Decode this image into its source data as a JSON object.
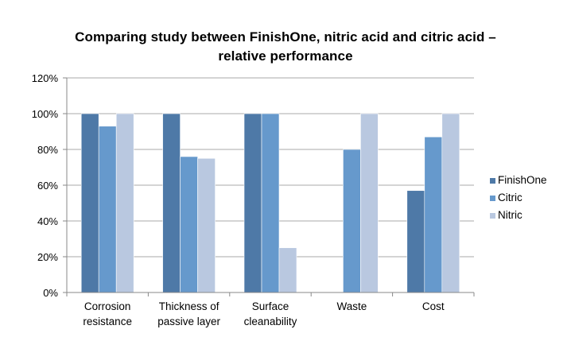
{
  "chart_data": {
    "type": "bar",
    "title_lines": [
      "Comparing study between FinishOne, nitric acid and citric acid –",
      "relative performance"
    ],
    "categories": [
      [
        "Corrosion",
        "resistance"
      ],
      [
        "Thickness of",
        "passive layer"
      ],
      [
        "Surface",
        "cleanability"
      ],
      [
        "Waste"
      ],
      [
        "Cost"
      ]
    ],
    "series": [
      {
        "name": "FinishOne",
        "color": "#4e79a7",
        "values": [
          100,
          100,
          100,
          null,
          57
        ]
      },
      {
        "name": "Citric",
        "color": "#6699cc",
        "values": [
          93,
          76,
          100,
          80,
          87
        ]
      },
      {
        "name": "Nitric",
        "color": "#b9c8e0",
        "values": [
          100,
          75,
          25,
          100,
          100
        ]
      }
    ],
    "yticks": [
      "0%",
      "20%",
      "40%",
      "60%",
      "80%",
      "100%",
      "120%"
    ],
    "ylim": [
      0,
      120
    ],
    "grid": true,
    "legend_position": "right"
  }
}
